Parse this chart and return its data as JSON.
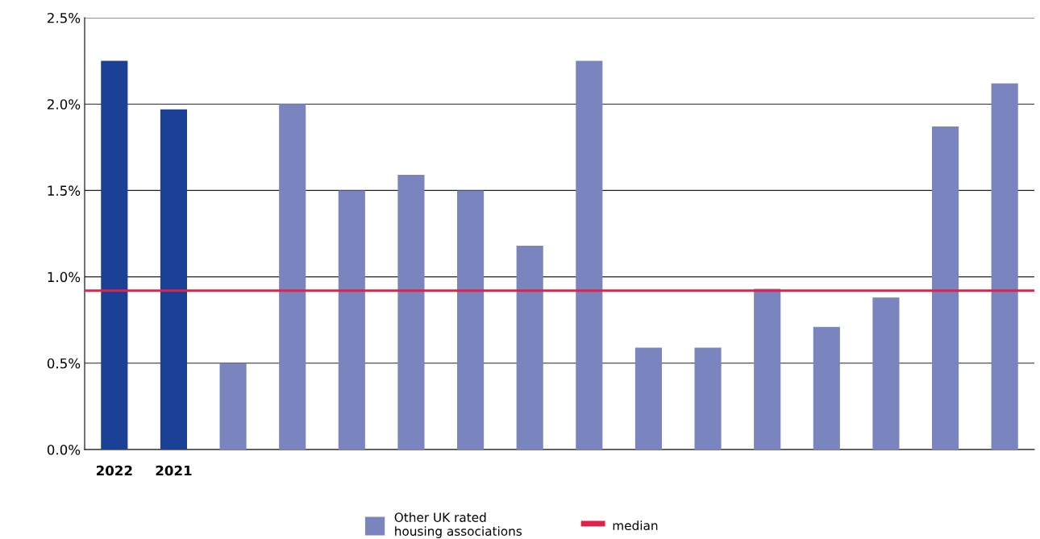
{
  "chart_data": {
    "type": "bar",
    "categories": [
      "2022",
      "2021",
      null,
      null,
      null,
      null,
      null,
      null,
      null,
      null,
      null,
      null,
      null,
      null,
      null,
      null
    ],
    "series": [
      {
        "color": "#1a4196",
        "values": [
          2.25,
          1.97,
          null,
          null,
          null,
          null,
          null,
          null,
          null,
          null,
          null,
          null,
          null,
          null,
          null,
          null
        ]
      },
      {
        "name": "Other UK rated\nhousing associations",
        "color": "#7a85c0",
        "values": [
          null,
          null,
          0.5,
          2.0,
          1.5,
          1.59,
          1.5,
          1.18,
          2.25,
          0.59,
          0.59,
          0.93,
          0.71,
          0.88,
          1.87,
          2.12
        ]
      }
    ],
    "ylim": [
      0,
      2.5
    ],
    "yticks": [
      {
        "value": 0,
        "label": "0.0%"
      },
      {
        "value": 0.5,
        "label": "0.5%"
      },
      {
        "value": 1.0,
        "label": "1.0%"
      },
      {
        "value": 1.5,
        "label": "1.5%"
      },
      {
        "value": 2.0,
        "label": "2.0%"
      },
      {
        "value": 2.5,
        "label": "2.5%"
      }
    ],
    "grid": "y",
    "legend": "bottom",
    "ref_lines": [
      {
        "axis": "y",
        "value": 0.92,
        "label": "median",
        "color": "#e0224a"
      }
    ]
  }
}
